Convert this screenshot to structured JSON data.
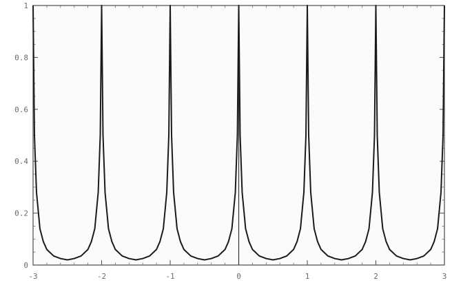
{
  "chart_data": {
    "type": "line",
    "title": "",
    "xlabel": "",
    "ylabel": "",
    "xlim": [
      -3,
      3
    ],
    "ylim": [
      0,
      1
    ],
    "x_ticks": [
      -3,
      -2,
      -1,
      0,
      1,
      2,
      3
    ],
    "x_tick_labels": [
      "-3",
      "-2",
      "-1",
      "0",
      "1",
      "2",
      "3"
    ],
    "y_ticks": [
      0,
      0.2,
      0.4,
      0.6,
      0.8,
      1
    ],
    "y_tick_labels": [
      "0",
      "0.2",
      "0.4",
      "0.6",
      "0.8",
      "1"
    ],
    "grid": false,
    "frame": true,
    "line_color": "#1a1a1a",
    "series": [
      {
        "x": [
          -3,
          -2.98,
          -2.95,
          -2.9,
          -2.85,
          -2.8,
          -2.7,
          -2.6,
          -2.5,
          -2.4,
          -2.3,
          -2.2,
          -2.15,
          -2.1,
          -2.05,
          -2.02,
          -2.0,
          -1.98,
          -1.95,
          -1.9,
          -1.85,
          -1.8,
          -1.7,
          -1.6,
          -1.5,
          -1.4,
          -1.3,
          -1.2,
          -1.15,
          -1.1,
          -1.05,
          -1.02,
          -1.0,
          -0.98,
          -0.95,
          -0.9,
          -0.85,
          -0.8,
          -0.7,
          -0.6,
          -0.5,
          -0.4,
          -0.3,
          -0.2,
          -0.15,
          -0.1,
          -0.05,
          -0.02,
          0.0,
          0.02,
          0.05,
          0.1,
          0.15,
          0.2,
          0.3,
          0.4,
          0.5,
          0.6,
          0.7,
          0.8,
          0.85,
          0.9,
          0.95,
          0.98,
          1.0,
          1.02,
          1.05,
          1.1,
          1.15,
          1.2,
          1.3,
          1.4,
          1.5,
          1.6,
          1.7,
          1.8,
          1.85,
          1.9,
          1.95,
          1.98,
          2.0,
          2.02,
          2.05,
          2.1,
          2.15,
          2.2,
          2.3,
          2.4,
          2.5,
          2.6,
          2.7,
          2.8,
          2.85,
          2.9,
          2.95,
          2.98,
          3.0
        ],
        "y": [
          1.0,
          0.5,
          0.28,
          0.14,
          0.09,
          0.06,
          0.035,
          0.025,
          0.02,
          0.025,
          0.035,
          0.06,
          0.09,
          0.14,
          0.28,
          0.5,
          1.0,
          0.5,
          0.28,
          0.14,
          0.09,
          0.06,
          0.035,
          0.025,
          0.02,
          0.025,
          0.035,
          0.06,
          0.09,
          0.14,
          0.28,
          0.5,
          1.0,
          0.5,
          0.28,
          0.14,
          0.09,
          0.06,
          0.035,
          0.025,
          0.02,
          0.025,
          0.035,
          0.06,
          0.09,
          0.14,
          0.28,
          0.5,
          1.0,
          0.5,
          0.28,
          0.14,
          0.09,
          0.06,
          0.035,
          0.025,
          0.02,
          0.025,
          0.035,
          0.06,
          0.09,
          0.14,
          0.28,
          0.5,
          1.0,
          0.5,
          0.28,
          0.14,
          0.09,
          0.06,
          0.035,
          0.025,
          0.02,
          0.025,
          0.035,
          0.06,
          0.09,
          0.14,
          0.28,
          0.5,
          1.0,
          0.5,
          0.28,
          0.14,
          0.09,
          0.06,
          0.035,
          0.025,
          0.02,
          0.025,
          0.035,
          0.06,
          0.09,
          0.14,
          0.28,
          0.5,
          1.0
        ]
      }
    ]
  }
}
